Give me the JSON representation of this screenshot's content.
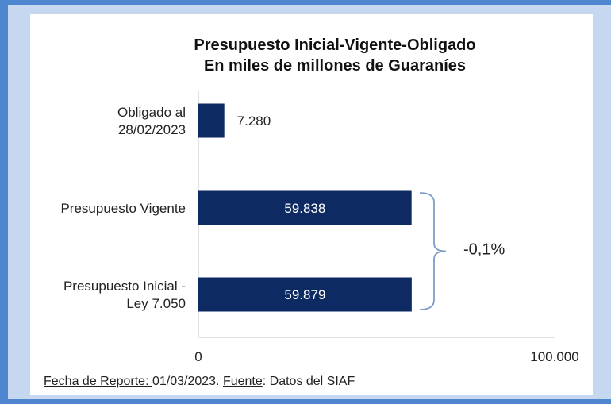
{
  "chart_data": {
    "type": "bar",
    "orientation": "horizontal",
    "title": [
      "Presupuesto Inicial-Vigente-Obligado",
      "En miles de millones de Guaraníes"
    ],
    "categories": [
      [
        "Obligado al",
        "28/02/2023"
      ],
      [
        "Presupuesto Vigente"
      ],
      [
        "Presupuesto Inicial -",
        "Ley 7.050"
      ]
    ],
    "values": [
      7280,
      59838,
      59879
    ],
    "value_labels": [
      "7.280",
      "59.838",
      "59.879"
    ],
    "xlim": [
      0,
      100000
    ],
    "xticks": [
      "0",
      "100.000"
    ],
    "annotation": "-0,1%",
    "bar_color": "#0e2a63"
  },
  "footer": {
    "date_label": "Fecha de Reporte: ",
    "date_value": "01/03/2023. ",
    "source_label": "Fuente",
    "source_value": ": Datos del SIAF"
  }
}
